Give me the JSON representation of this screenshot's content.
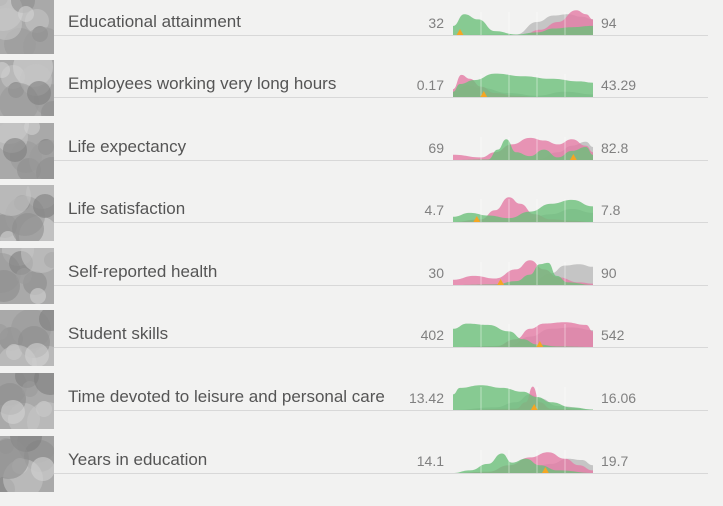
{
  "colors": {
    "green": "#6bbf7a",
    "pink": "#e47aa5",
    "gray": "#b5b5b5",
    "marker": "#f5a623",
    "background": "#f2f2f1"
  },
  "indicators": [
    {
      "label": "Educational attainment",
      "min": "32",
      "max": "94",
      "marker": 0.05,
      "green": [
        [
          0,
          0.35
        ],
        [
          0.08,
          0.8
        ],
        [
          0.18,
          0.6
        ],
        [
          0.3,
          0.15
        ],
        [
          0.45,
          0.02
        ],
        [
          0.6,
          0.1
        ],
        [
          0.72,
          0.25
        ],
        [
          0.85,
          0.3
        ],
        [
          1,
          0.35
        ]
      ],
      "pink": [
        [
          0,
          0
        ],
        [
          0.5,
          0
        ],
        [
          0.62,
          0.2
        ],
        [
          0.75,
          0.5
        ],
        [
          0.88,
          0.95
        ],
        [
          0.95,
          0.8
        ],
        [
          1,
          0.6
        ]
      ],
      "gray": [
        [
          0,
          0
        ],
        [
          0.45,
          0.02
        ],
        [
          0.6,
          0.5
        ],
        [
          0.72,
          0.75
        ],
        [
          0.82,
          0.8
        ],
        [
          0.92,
          0.7
        ],
        [
          1,
          0.6
        ]
      ]
    },
    {
      "label": "Employees working very long hours",
      "min": "0.17",
      "max": "43.29",
      "marker": 0.22,
      "green": [
        [
          0,
          0.2
        ],
        [
          0.05,
          0.5
        ],
        [
          0.15,
          0.65
        ],
        [
          0.3,
          0.9
        ],
        [
          0.5,
          0.8
        ],
        [
          0.7,
          0.7
        ],
        [
          0.9,
          0.6
        ],
        [
          1,
          0.55
        ]
      ],
      "pink": [
        [
          0,
          0.3
        ],
        [
          0.06,
          0.85
        ],
        [
          0.12,
          0.7
        ],
        [
          0.2,
          0.4
        ],
        [
          0.3,
          0.15
        ],
        [
          0.45,
          0.05
        ],
        [
          0.6,
          0
        ],
        [
          1,
          0
        ]
      ],
      "gray": [
        [
          0,
          0.2
        ],
        [
          0.1,
          0.45
        ],
        [
          0.2,
          0.35
        ],
        [
          0.4,
          0.15
        ],
        [
          0.6,
          0.05
        ],
        [
          0.8,
          0.2
        ],
        [
          1,
          0.1
        ]
      ]
    },
    {
      "label": "Life expectancy",
      "min": "69",
      "max": "82.8",
      "marker": 0.86,
      "green": [
        [
          0,
          0
        ],
        [
          0.25,
          0.02
        ],
        [
          0.32,
          0.4
        ],
        [
          0.38,
          0.8
        ],
        [
          0.45,
          0.3
        ],
        [
          0.55,
          0.15
        ],
        [
          0.65,
          0.4
        ],
        [
          0.75,
          0.1
        ],
        [
          0.85,
          0.35
        ],
        [
          0.95,
          0.5
        ],
        [
          1,
          0.2
        ]
      ],
      "pink": [
        [
          0,
          0.2
        ],
        [
          0.2,
          0.1
        ],
        [
          0.3,
          0.3
        ],
        [
          0.42,
          0.6
        ],
        [
          0.55,
          0.85
        ],
        [
          0.65,
          0.75
        ],
        [
          0.75,
          0.6
        ],
        [
          0.85,
          0.8
        ],
        [
          0.95,
          0.55
        ],
        [
          1,
          0.3
        ]
      ],
      "gray": [
        [
          0,
          0
        ],
        [
          0.6,
          0.02
        ],
        [
          0.75,
          0.3
        ],
        [
          0.85,
          0.55
        ],
        [
          0.95,
          0.7
        ],
        [
          1,
          0.5
        ]
      ]
    },
    {
      "label": "Life satisfaction",
      "min": "4.7",
      "max": "7.8",
      "marker": 0.17,
      "green": [
        [
          0,
          0.2
        ],
        [
          0.12,
          0.35
        ],
        [
          0.25,
          0.25
        ],
        [
          0.4,
          0.15
        ],
        [
          0.55,
          0.4
        ],
        [
          0.7,
          0.7
        ],
        [
          0.85,
          0.85
        ],
        [
          1,
          0.6
        ]
      ],
      "pink": [
        [
          0,
          0
        ],
        [
          0.2,
          0.1
        ],
        [
          0.3,
          0.45
        ],
        [
          0.4,
          0.95
        ],
        [
          0.48,
          0.7
        ],
        [
          0.58,
          0.3
        ],
        [
          0.7,
          0.1
        ],
        [
          0.85,
          0.05
        ],
        [
          1,
          0
        ]
      ],
      "gray": [
        [
          0,
          0
        ],
        [
          0.5,
          0.05
        ],
        [
          0.7,
          0.3
        ],
        [
          0.85,
          0.5
        ],
        [
          1,
          0.35
        ]
      ]
    },
    {
      "label": "Self-reported health",
      "min": "30",
      "max": "90",
      "marker": 0.34,
      "green": [
        [
          0,
          0
        ],
        [
          0.3,
          0.02
        ],
        [
          0.45,
          0.15
        ],
        [
          0.55,
          0.4
        ],
        [
          0.62,
          0.8
        ],
        [
          0.68,
          0.85
        ],
        [
          0.74,
          0.35
        ],
        [
          0.82,
          0.1
        ],
        [
          1,
          0
        ]
      ],
      "pink": [
        [
          0,
          0.2
        ],
        [
          0.15,
          0.35
        ],
        [
          0.3,
          0.25
        ],
        [
          0.45,
          0.6
        ],
        [
          0.55,
          0.95
        ],
        [
          0.65,
          0.6
        ],
        [
          0.75,
          0.3
        ],
        [
          0.9,
          0.1
        ],
        [
          1,
          0.05
        ]
      ],
      "gray": [
        [
          0,
          0
        ],
        [
          0.55,
          0.05
        ],
        [
          0.7,
          0.45
        ],
        [
          0.8,
          0.75
        ],
        [
          0.9,
          0.8
        ],
        [
          1,
          0.7
        ]
      ]
    },
    {
      "label": "Student skills",
      "min": "402",
      "max": "542",
      "marker": 0.62,
      "green": [
        [
          0,
          0.7
        ],
        [
          0.1,
          0.9
        ],
        [
          0.25,
          0.85
        ],
        [
          0.4,
          0.6
        ],
        [
          0.5,
          0.3
        ],
        [
          0.6,
          0.1
        ],
        [
          0.75,
          0.02
        ],
        [
          1,
          0
        ]
      ],
      "pink": [
        [
          0,
          0
        ],
        [
          0.3,
          0.02
        ],
        [
          0.45,
          0.3
        ],
        [
          0.55,
          0.7
        ],
        [
          0.65,
          0.9
        ],
        [
          0.8,
          0.95
        ],
        [
          0.95,
          0.85
        ],
        [
          1,
          0.6
        ]
      ],
      "gray": [
        [
          0,
          0
        ],
        [
          0.4,
          0.05
        ],
        [
          0.55,
          0.4
        ],
        [
          0.7,
          0.7
        ],
        [
          0.85,
          0.75
        ],
        [
          1,
          0.65
        ]
      ]
    },
    {
      "label": "Time devoted to leisure and personal care",
      "min": "13.42",
      "max": "16.06",
      "marker": 0.58,
      "green": [
        [
          0,
          0.6
        ],
        [
          0.05,
          0.85
        ],
        [
          0.2,
          0.95
        ],
        [
          0.35,
          0.85
        ],
        [
          0.5,
          0.7
        ],
        [
          0.6,
          0.5
        ],
        [
          0.7,
          0.3
        ],
        [
          0.85,
          0.1
        ],
        [
          1,
          0.02
        ]
      ],
      "pink": [
        [
          0,
          0
        ],
        [
          0.45,
          0.05
        ],
        [
          0.52,
          0.3
        ],
        [
          0.57,
          0.9
        ],
        [
          0.62,
          0.3
        ],
        [
          0.7,
          0.05
        ],
        [
          1,
          0
        ]
      ],
      "gray": [
        [
          0,
          0
        ],
        [
          0.3,
          0.1
        ],
        [
          0.45,
          0.3
        ],
        [
          0.55,
          0.6
        ],
        [
          0.62,
          0.45
        ],
        [
          0.75,
          0.15
        ],
        [
          1,
          0.02
        ]
      ]
    },
    {
      "label": "Years in education",
      "min": "14.1",
      "max": "19.7",
      "marker": 0.66,
      "green": [
        [
          0,
          0
        ],
        [
          0.12,
          0.1
        ],
        [
          0.25,
          0.35
        ],
        [
          0.35,
          0.75
        ],
        [
          0.42,
          0.4
        ],
        [
          0.52,
          0.55
        ],
        [
          0.62,
          0.3
        ],
        [
          0.75,
          0.1
        ],
        [
          1,
          0
        ]
      ],
      "pink": [
        [
          0,
          0
        ],
        [
          0.25,
          0.05
        ],
        [
          0.4,
          0.3
        ],
        [
          0.55,
          0.6
        ],
        [
          0.68,
          0.8
        ],
        [
          0.8,
          0.55
        ],
        [
          0.9,
          0.3
        ],
        [
          1,
          0.1
        ]
      ],
      "gray": [
        [
          0,
          0
        ],
        [
          0.5,
          0.05
        ],
        [
          0.7,
          0.35
        ],
        [
          0.82,
          0.55
        ],
        [
          0.92,
          0.5
        ],
        [
          1,
          0.3
        ]
      ]
    }
  ]
}
